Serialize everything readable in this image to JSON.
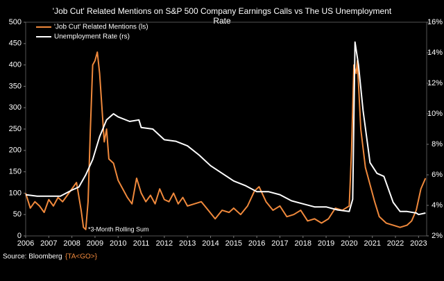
{
  "chart_data": {
    "type": "line",
    "title": "'Job Cut' Related Mentions on S&P 500 Company Earnings Calls vs The US Unemployment Rate",
    "annotation": "*3-Month Rolling Sum",
    "source": "Source: Bloomberg",
    "source_code": "{TA<GO>}",
    "legend": "upper left",
    "xlim": [
      2006,
      2023.35
    ],
    "xticks": [
      2006,
      2007,
      2008,
      2009,
      2010,
      2011,
      2012,
      2013,
      2014,
      2015,
      2016,
      2017,
      2018,
      2019,
      2020,
      2021,
      2022,
      2023
    ],
    "ylim": [
      0,
      500
    ],
    "yticks": [
      0,
      50,
      100,
      150,
      200,
      250,
      300,
      350,
      400,
      450,
      500
    ],
    "y2lim": [
      2,
      16
    ],
    "y2ticks": [
      {
        "value": 2,
        "label": "2%"
      },
      {
        "value": 4,
        "label": "4%"
      },
      {
        "value": 6,
        "label": "6%"
      },
      {
        "value": 8,
        "label": "8%"
      },
      {
        "value": 10,
        "label": "10%"
      },
      {
        "value": 12,
        "label": "12%"
      },
      {
        "value": 14,
        "label": "14%"
      },
      {
        "value": 16,
        "label": "16%"
      }
    ],
    "series": [
      {
        "name": "'Job Cut' Related Mentions (ls)",
        "color": "#f0893c",
        "axis": "y",
        "x": [
          2006.0,
          2006.2,
          2006.4,
          2006.6,
          2006.8,
          2007.0,
          2007.2,
          2007.4,
          2007.6,
          2007.8,
          2008.0,
          2008.2,
          2008.4,
          2008.5,
          2008.6,
          2008.7,
          2008.8,
          2008.9,
          2009.0,
          2009.1,
          2009.2,
          2009.3,
          2009.4,
          2009.5,
          2009.6,
          2009.8,
          2010.0,
          2010.2,
          2010.4,
          2010.6,
          2010.8,
          2011.0,
          2011.2,
          2011.4,
          2011.6,
          2011.8,
          2012.0,
          2012.2,
          2012.4,
          2012.6,
          2012.8,
          2013.0,
          2013.3,
          2013.6,
          2013.9,
          2014.2,
          2014.5,
          2014.8,
          2015.0,
          2015.3,
          2015.6,
          2015.9,
          2016.1,
          2016.4,
          2016.7,
          2017.0,
          2017.3,
          2017.6,
          2017.9,
          2018.2,
          2018.5,
          2018.8,
          2019.1,
          2019.4,
          2019.7,
          2020.0,
          2020.1,
          2020.2,
          2020.3,
          2020.35,
          2020.5,
          2020.7,
          2020.9,
          2021.1,
          2021.3,
          2021.6,
          2021.9,
          2022.2,
          2022.5,
          2022.7,
          2022.9,
          2023.1,
          2023.3
        ],
        "values": [
          100,
          65,
          80,
          70,
          55,
          85,
          70,
          90,
          80,
          95,
          110,
          125,
          60,
          20,
          15,
          80,
          250,
          400,
          410,
          430,
          380,
          300,
          220,
          250,
          180,
          170,
          130,
          110,
          90,
          75,
          135,
          100,
          80,
          95,
          75,
          110,
          85,
          80,
          100,
          75,
          90,
          70,
          75,
          80,
          60,
          40,
          60,
          55,
          65,
          50,
          70,
          105,
          115,
          80,
          60,
          70,
          45,
          50,
          60,
          35,
          40,
          30,
          40,
          65,
          60,
          70,
          200,
          400,
          380,
          410,
          250,
          160,
          120,
          80,
          45,
          30,
          25,
          20,
          25,
          35,
          60,
          110,
          135
        ]
      },
      {
        "name": "Unemployment Rate (rs)",
        "color": "#ffffff",
        "axis": "y2",
        "x": [
          2006.0,
          2006.5,
          2007.0,
          2007.5,
          2008.0,
          2008.3,
          2008.6,
          2008.9,
          2009.2,
          2009.5,
          2009.8,
          2010.0,
          2010.5,
          2010.9,
          2011.0,
          2011.5,
          2012.0,
          2012.5,
          2013.0,
          2013.5,
          2014.0,
          2014.5,
          2015.0,
          2015.5,
          2016.0,
          2016.5,
          2017.0,
          2017.5,
          2018.0,
          2018.5,
          2019.0,
          2019.5,
          2020.0,
          2020.15,
          2020.25,
          2020.4,
          2020.6,
          2020.9,
          2021.2,
          2021.5,
          2021.9,
          2022.2,
          2022.5,
          2022.9,
          2023.0,
          2023.3
        ],
        "values": [
          4.7,
          4.6,
          4.6,
          4.6,
          5.0,
          5.2,
          6.0,
          7.0,
          8.5,
          9.6,
          10.0,
          9.8,
          9.5,
          9.6,
          9.1,
          9.0,
          8.3,
          8.2,
          7.9,
          7.3,
          6.6,
          6.1,
          5.6,
          5.3,
          4.9,
          4.9,
          4.7,
          4.3,
          4.1,
          3.9,
          3.9,
          3.7,
          3.6,
          4.4,
          14.7,
          13.2,
          10.2,
          6.8,
          6.1,
          5.9,
          4.2,
          3.6,
          3.6,
          3.5,
          3.4,
          3.5
        ]
      }
    ]
  }
}
